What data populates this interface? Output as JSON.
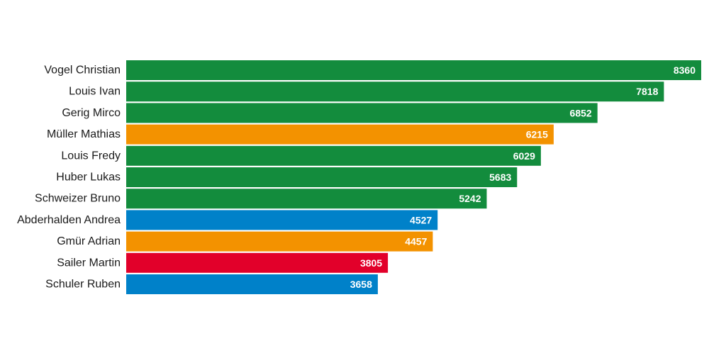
{
  "chart_data": {
    "type": "bar",
    "orientation": "horizontal",
    "title": "",
    "xlabel": "",
    "ylabel": "",
    "xlim": [
      0,
      8360
    ],
    "grid": false,
    "legend": "none",
    "categories": [
      "Vogel Christian",
      "Louis Ivan",
      "Gerig Mirco",
      "Müller Mathias",
      "Louis Fredy",
      "Huber Lukas",
      "Schweizer Bruno",
      "Abderhalden Andrea",
      "Gmür Adrian",
      "Sailer Martin",
      "Schuler Ruben"
    ],
    "values": [
      8360,
      7818,
      6852,
      6215,
      6029,
      5683,
      5242,
      4527,
      4457,
      3805,
      3658
    ],
    "bar_colors": [
      "#138c3d",
      "#138c3d",
      "#138c3d",
      "#f39200",
      "#138c3d",
      "#138c3d",
      "#138c3d",
      "#0081c9",
      "#f39200",
      "#e2002a",
      "#0081c9"
    ]
  }
}
